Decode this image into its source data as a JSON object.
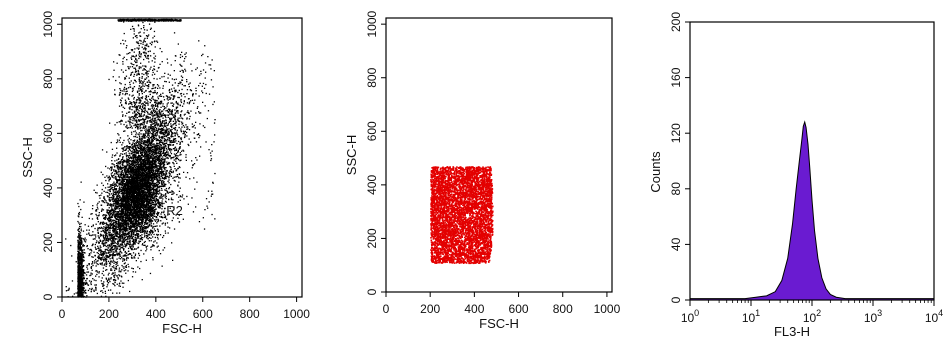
{
  "chart_data": [
    {
      "type": "scatter",
      "title": "",
      "xlabel": "FSC-H",
      "ylabel": "SSC-H",
      "xlim": [
        0,
        1023
      ],
      "ylim": [
        0,
        1023
      ],
      "x_ticks": [
        "0",
        "200",
        "400",
        "600",
        "800",
        "1000"
      ],
      "y_ticks": [
        "0",
        "200",
        "400",
        "600",
        "800",
        "1000"
      ],
      "x_tick_values": [
        0,
        200,
        400,
        600,
        800,
        1000
      ],
      "y_tick_values": [
        0,
        200,
        400,
        600,
        800,
        1000
      ],
      "grid": false,
      "point_color": "#000000",
      "region_label": "R2",
      "region_label_value": [
        480,
        300
      ],
      "population": {
        "description_center": [
          320,
          400
        ],
        "approx_x_range": [
          60,
          600
        ],
        "approx_y_range": [
          0,
          1023
        ]
      }
    },
    {
      "type": "scatter",
      "title": "",
      "xlabel": "FSC-H",
      "ylabel": "SSC-H",
      "xlim": [
        0,
        1023
      ],
      "ylim": [
        0,
        1023
      ],
      "x_ticks": [
        "0",
        "200",
        "400",
        "600",
        "800",
        "1000"
      ],
      "y_ticks": [
        "0",
        "200",
        "400",
        "600",
        "800",
        "1000"
      ],
      "x_tick_values": [
        0,
        200,
        400,
        600,
        800,
        1000
      ],
      "y_tick_values": [
        0,
        200,
        400,
        600,
        800,
        1000
      ],
      "grid": false,
      "point_color": "#e30000",
      "gated_region": {
        "x_range": [
          200,
          480
        ],
        "y_range": [
          110,
          470
        ]
      }
    },
    {
      "type": "area",
      "title": "",
      "xlabel": "FL3-H",
      "ylabel": "Counts",
      "x_scale": "log",
      "xlim": [
        1,
        10000
      ],
      "ylim": [
        0,
        200
      ],
      "x_ticks": [
        {
          "base": "10",
          "exp": "0"
        },
        {
          "base": "10",
          "exp": "1"
        },
        {
          "base": "10",
          "exp": "2"
        },
        {
          "base": "10",
          "exp": "3"
        },
        {
          "base": "10",
          "exp": "4"
        }
      ],
      "x_tick_values": [
        1,
        10,
        100,
        1000,
        10000
      ],
      "y_ticks": [
        "0",
        "40",
        "80",
        "120",
        "160",
        "200"
      ],
      "y_tick_values": [
        0,
        40,
        80,
        120,
        160,
        200
      ],
      "grid": false,
      "fill_color": "#6a1bd1",
      "x": [
        1,
        8,
        12,
        18,
        25,
        32,
        40,
        48,
        55,
        62,
        68,
        72,
        76,
        80,
        86,
        92,
        100,
        110,
        125,
        145,
        170,
        200,
        250,
        350,
        600,
        10000
      ],
      "y": [
        1,
        1,
        2,
        3,
        6,
        14,
        30,
        55,
        80,
        100,
        115,
        125,
        128,
        124,
        112,
        95,
        72,
        50,
        30,
        16,
        8,
        4,
        2,
        1,
        1,
        1
      ]
    }
  ]
}
